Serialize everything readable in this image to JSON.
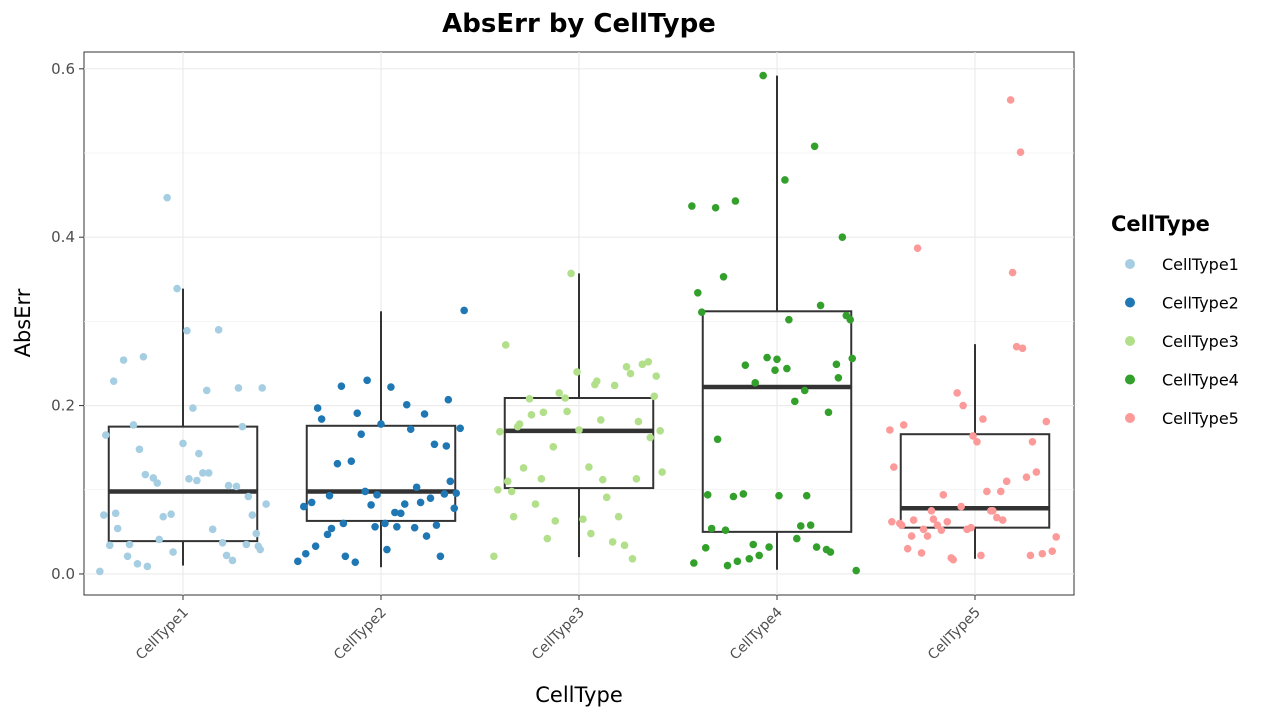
{
  "chart_data": {
    "type": "box",
    "title": "AbsErr by CellType",
    "xlabel": "CellType",
    "ylabel": "AbsErr",
    "ylim": [
      -0.025,
      0.62
    ],
    "yticks": [
      "0.0",
      "0.2",
      "0.4",
      "0.6"
    ],
    "ytick_values": [
      0.0,
      0.2,
      0.4,
      0.6
    ],
    "grid": true,
    "legend": {
      "title": "CellType",
      "placement": "right"
    },
    "categories": [
      "CellType1",
      "CellType2",
      "CellType3",
      "CellType4",
      "CellType5"
    ],
    "colors": [
      "#a6cee3",
      "#1f78b4",
      "#b2df8a",
      "#33a02c",
      "#fb9a99"
    ],
    "boxes": [
      {
        "name": "CellType1",
        "q1": 0.039,
        "median": 0.098,
        "q3": 0.175,
        "whisker_low": 0.01,
        "whisker_high": 0.339
      },
      {
        "name": "CellType2",
        "q1": 0.063,
        "median": 0.098,
        "q3": 0.176,
        "whisker_low": 0.008,
        "whisker_high": 0.312
      },
      {
        "name": "CellType3",
        "q1": 0.102,
        "median": 0.17,
        "q3": 0.209,
        "whisker_low": 0.02,
        "whisker_high": 0.357
      },
      {
        "name": "CellType4",
        "q1": 0.05,
        "median": 0.222,
        "q3": 0.312,
        "whisker_low": 0.005,
        "whisker_high": 0.592
      },
      {
        "name": "CellType5",
        "q1": 0.055,
        "median": 0.078,
        "q3": 0.166,
        "whisker_low": 0.018,
        "whisker_high": 0.273
      }
    ],
    "series": [
      {
        "name": "CellType1",
        "x_offset": [
          -0.42,
          -0.39,
          -0.35,
          -0.33,
          -0.3,
          -0.28,
          -0.25,
          -0.22,
          -0.2,
          -0.18,
          -0.15,
          -0.12,
          -0.1,
          -0.08,
          -0.05,
          -0.03,
          0.0,
          0.02,
          0.05,
          0.08,
          0.1,
          0.12,
          0.15,
          0.18,
          0.2,
          0.23,
          0.25,
          0.28,
          0.3,
          0.33,
          0.35,
          0.38,
          0.4,
          -0.4,
          -0.37,
          -0.34,
          -0.27,
          -0.23,
          -0.19,
          -0.13,
          -0.06,
          0.03,
          0.07,
          0.13,
          0.22,
          0.27,
          0.32,
          0.37,
          0.42,
          0.39
        ],
        "values": [
          0.003,
          0.165,
          0.229,
          0.054,
          0.254,
          0.021,
          0.177,
          0.148,
          0.258,
          0.009,
          0.114,
          0.041,
          0.068,
          0.447,
          0.026,
          0.339,
          0.155,
          0.289,
          0.197,
          0.143,
          0.12,
          0.218,
          0.053,
          0.29,
          0.037,
          0.105,
          0.016,
          0.221,
          0.175,
          0.092,
          0.07,
          0.033,
          0.221,
          0.07,
          0.034,
          0.072,
          0.035,
          0.012,
          0.118,
          0.108,
          0.071,
          0.113,
          0.111,
          0.12,
          0.022,
          0.104,
          0.035,
          0.048,
          0.083,
          0.029
        ]
      },
      {
        "name": "CellType2",
        "x_offset": [
          -0.42,
          -0.38,
          -0.35,
          -0.32,
          -0.3,
          -0.27,
          -0.25,
          -0.22,
          -0.2,
          -0.18,
          -0.15,
          -0.12,
          -0.1,
          -0.07,
          -0.05,
          -0.02,
          0.0,
          0.02,
          0.05,
          0.08,
          0.1,
          0.13,
          0.15,
          0.18,
          0.2,
          0.23,
          0.25,
          0.28,
          0.3,
          0.33,
          0.35,
          0.38,
          0.4,
          -0.39,
          -0.33,
          -0.26,
          -0.19,
          -0.13,
          -0.08,
          -0.03,
          0.03,
          0.07,
          0.12,
          0.17,
          0.22,
          0.27,
          0.32,
          0.37,
          0.42,
          0.34
        ],
        "values": [
          0.015,
          0.024,
          0.085,
          0.197,
          0.184,
          0.047,
          0.054,
          0.131,
          0.223,
          0.021,
          0.134,
          0.191,
          0.166,
          0.23,
          0.082,
          0.094,
          0.178,
          0.06,
          0.222,
          0.056,
          0.072,
          0.201,
          0.172,
          0.103,
          0.085,
          0.045,
          0.09,
          0.058,
          0.021,
          0.152,
          0.11,
          0.096,
          0.173,
          0.08,
          0.033,
          0.093,
          0.06,
          0.014,
          0.098,
          0.056,
          0.029,
          0.073,
          0.083,
          0.055,
          0.19,
          0.154,
          0.095,
          0.078,
          0.313,
          0.207
        ]
      },
      {
        "name": "CellType3",
        "x_offset": [
          -0.43,
          -0.4,
          -0.37,
          -0.34,
          -0.31,
          -0.28,
          -0.25,
          -0.22,
          -0.19,
          -0.16,
          -0.13,
          -0.1,
          -0.07,
          -0.04,
          -0.01,
          0.02,
          0.05,
          0.08,
          0.11,
          0.14,
          0.17,
          0.2,
          0.23,
          0.26,
          0.29,
          0.32,
          0.35,
          0.38,
          0.41,
          -0.41,
          -0.36,
          -0.3,
          -0.24,
          -0.18,
          -0.12,
          -0.06,
          0.0,
          0.06,
          0.12,
          0.18,
          0.24,
          0.3,
          0.36,
          0.42,
          -0.33,
          0.09,
          0.27,
          0.39
        ],
        "values": [
          0.021,
          0.169,
          0.272,
          0.098,
          0.175,
          0.126,
          0.208,
          0.083,
          0.113,
          0.042,
          0.151,
          0.215,
          0.209,
          0.357,
          0.24,
          0.065,
          0.127,
          0.225,
          0.183,
          0.091,
          0.038,
          0.068,
          0.034,
          0.238,
          0.113,
          0.249,
          0.252,
          0.211,
          0.17,
          0.1,
          0.11,
          0.178,
          0.189,
          0.192,
          0.063,
          0.193,
          0.171,
          0.048,
          0.112,
          0.224,
          0.246,
          0.181,
          0.162,
          0.121,
          0.068,
          0.229,
          0.018,
          0.235
        ]
      },
      {
        "name": "CellType4",
        "x_offset": [
          -0.43,
          -0.4,
          -0.38,
          -0.35,
          -0.33,
          -0.3,
          -0.27,
          -0.25,
          -0.22,
          -0.2,
          -0.17,
          -0.14,
          -0.12,
          -0.09,
          -0.07,
          -0.04,
          -0.01,
          0.01,
          0.04,
          0.06,
          0.09,
          0.12,
          0.14,
          0.17,
          0.19,
          0.22,
          0.25,
          0.27,
          0.3,
          0.33,
          0.35,
          0.38,
          0.4,
          -0.42,
          -0.36,
          -0.31,
          -0.26,
          -0.21,
          -0.16,
          -0.11,
          -0.05,
          0.0,
          0.05,
          0.1,
          0.15,
          0.2,
          0.26,
          0.31,
          0.37
        ],
        "values": [
          0.437,
          0.334,
          0.311,
          0.094,
          0.054,
          0.16,
          0.353,
          0.01,
          0.092,
          0.015,
          0.095,
          0.018,
          0.035,
          0.022,
          0.592,
          0.032,
          0.242,
          0.093,
          0.468,
          0.302,
          0.205,
          0.057,
          0.218,
          0.058,
          0.508,
          0.319,
          0.029,
          0.026,
          0.249,
          0.4,
          0.307,
          0.256,
          0.004,
          0.013,
          0.031,
          0.435,
          0.052,
          0.443,
          0.248,
          0.227,
          0.257,
          0.255,
          0.244,
          0.042,
          0.093,
          0.032,
          0.192,
          0.233,
          0.302
        ]
      },
      {
        "name": "CellType5",
        "x_offset": [
          -0.43,
          -0.41,
          -0.38,
          -0.36,
          -0.34,
          -0.31,
          -0.29,
          -0.26,
          -0.24,
          -0.21,
          -0.19,
          -0.16,
          -0.14,
          -0.11,
          -0.09,
          -0.06,
          -0.04,
          -0.01,
          0.01,
          0.04,
          0.06,
          0.09,
          0.11,
          0.14,
          0.16,
          0.19,
          0.21,
          0.24,
          0.26,
          0.29,
          0.31,
          0.34,
          0.36,
          0.39,
          0.41,
          -0.42,
          -0.37,
          -0.32,
          -0.27,
          -0.22,
          -0.17,
          -0.12,
          -0.07,
          -0.02,
          0.03,
          0.08,
          0.13,
          0.18,
          0.23,
          0.28
        ],
        "values": [
          0.171,
          0.127,
          0.06,
          0.177,
          0.03,
          0.064,
          0.387,
          0.053,
          0.045,
          0.065,
          0.058,
          0.094,
          0.062,
          0.017,
          0.215,
          0.2,
          0.053,
          0.164,
          0.157,
          0.184,
          0.098,
          0.075,
          0.067,
          0.064,
          0.11,
          0.358,
          0.27,
          0.268,
          0.115,
          0.157,
          0.121,
          0.024,
          0.181,
          0.027,
          0.044,
          0.062,
          0.058,
          0.045,
          0.025,
          0.075,
          0.052,
          0.019,
          0.08,
          0.055,
          0.022,
          0.075,
          0.098,
          0.563,
          0.501,
          0.022
        ]
      }
    ]
  }
}
